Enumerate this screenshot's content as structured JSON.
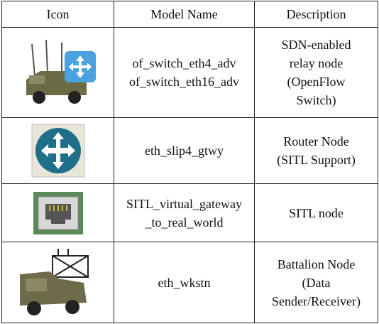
{
  "table": {
    "header": [
      "Icon",
      "Model Name",
      "Description"
    ],
    "rows": [
      {
        "model": [
          "of_switch_eth4_adv",
          "of_switch_eth16_adv"
        ],
        "description": [
          "SDN-enabled",
          "relay node",
          "(OpenFlow",
          "Switch)"
        ]
      },
      {
        "model": [
          "eth_slip4_gtwy"
        ],
        "description": [
          "Router Node",
          "(SITL Support)"
        ]
      },
      {
        "model": [
          "SITL_virtual_gateway",
          "_to_real_world"
        ],
        "description": [
          "SITL node"
        ]
      },
      {
        "model": [
          "eth_wkstn"
        ],
        "description": [
          "Battalion Node",
          "(Data",
          "Sender/Receiver)"
        ]
      }
    ]
  }
}
